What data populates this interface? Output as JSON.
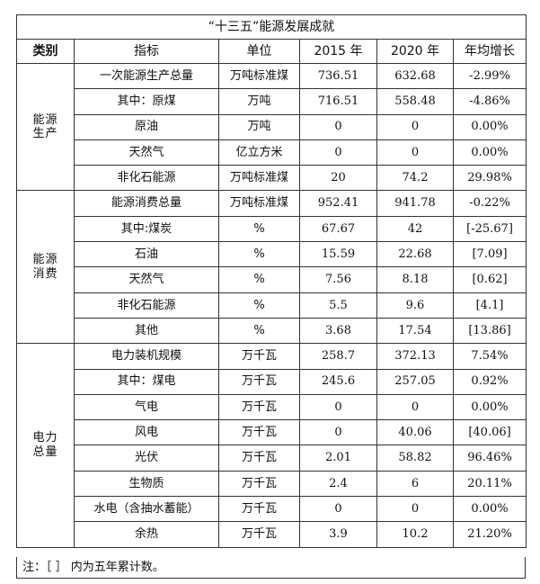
{
  "title": "“十三五”能源发展成就",
  "headers": [
    "类别",
    "指标",
    "单位",
    "2015 年",
    "2020 年",
    "年均增长"
  ],
  "groups": [
    {
      "category": "能源\n生产",
      "rows": [
        {
          "name": "一次能源生产总量",
          "unit": "万吨标准煤",
          "y2015": "736.51",
          "y2020": "632.68",
          "growth": "-2.99%"
        },
        {
          "name": "其中：原煤",
          "unit": "万吨",
          "y2015": "716.51",
          "y2020": "558.48",
          "growth": "-4.86%"
        },
        {
          "name": "原油",
          "unit": "万吨",
          "y2015": "0",
          "y2020": "0",
          "growth": "0.00%"
        },
        {
          "name": "天然气",
          "unit": "亿立方米",
          "y2015": "0",
          "y2020": "0",
          "growth": "0.00%"
        },
        {
          "name": "非化石能源",
          "unit": "万吨标准煤",
          "y2015": "20",
          "y2020": "74.2",
          "growth": "29.98%"
        }
      ]
    },
    {
      "category": "能源\n消费",
      "rows": [
        {
          "name": "能源消费总量",
          "unit": "万吨标准煤",
          "y2015": "952.41",
          "y2020": "941.78",
          "growth": "-0.22%"
        },
        {
          "name": "其中:煤炭",
          "unit": "%",
          "y2015": "67.67",
          "y2020": "42",
          "growth": "[-25.67]"
        },
        {
          "name": "石油",
          "unit": "%",
          "y2015": "15.59",
          "y2020": "22.68",
          "growth": "[7.09]"
        },
        {
          "name": "天然气",
          "unit": "%",
          "y2015": "7.56",
          "y2020": "8.18",
          "growth": "[0.62]"
        },
        {
          "name": "非化石能源",
          "unit": "%",
          "y2015": "5.5",
          "y2020": "9.6",
          "growth": "[4.1]"
        },
        {
          "name": "其他",
          "unit": "%",
          "y2015": "3.68",
          "y2020": "17.54",
          "growth": "[13.86]"
        }
      ]
    },
    {
      "category": "电力\n总量",
      "rows": [
        {
          "name": "电力装机规模",
          "unit": "万千瓦",
          "y2015": "258.7",
          "y2020": "372.13",
          "growth": "7.54%"
        },
        {
          "name": "其中：煤电",
          "unit": "万千瓦",
          "y2015": "245.6",
          "y2020": "257.05",
          "growth": "0.92%"
        },
        {
          "name": "气电",
          "unit": "万千瓦",
          "y2015": "0",
          "y2020": "0",
          "growth": "0.00%"
        },
        {
          "name": "风电",
          "unit": "万千瓦",
          "y2015": "0",
          "y2020": "40.06",
          "growth": "[40.06]"
        },
        {
          "name": "光伏",
          "unit": "万千瓦",
          "y2015": "2.01",
          "y2020": "58.82",
          "growth": "96.46%"
        },
        {
          "name": "生物质",
          "unit": "万千瓦",
          "y2015": "2.4",
          "y2020": "6",
          "growth": "20.11%"
        },
        {
          "name": "水电（含抽水蓄能）",
          "unit": "万千瓦",
          "y2015": "0",
          "y2020": "0",
          "growth": "0.00%"
        },
        {
          "name": "余热",
          "unit": "万千瓦",
          "y2015": "3.9",
          "y2020": "10.2",
          "growth": "21.20%"
        }
      ]
    }
  ],
  "note": "注：［ ］ 内为五年累计数。"
}
